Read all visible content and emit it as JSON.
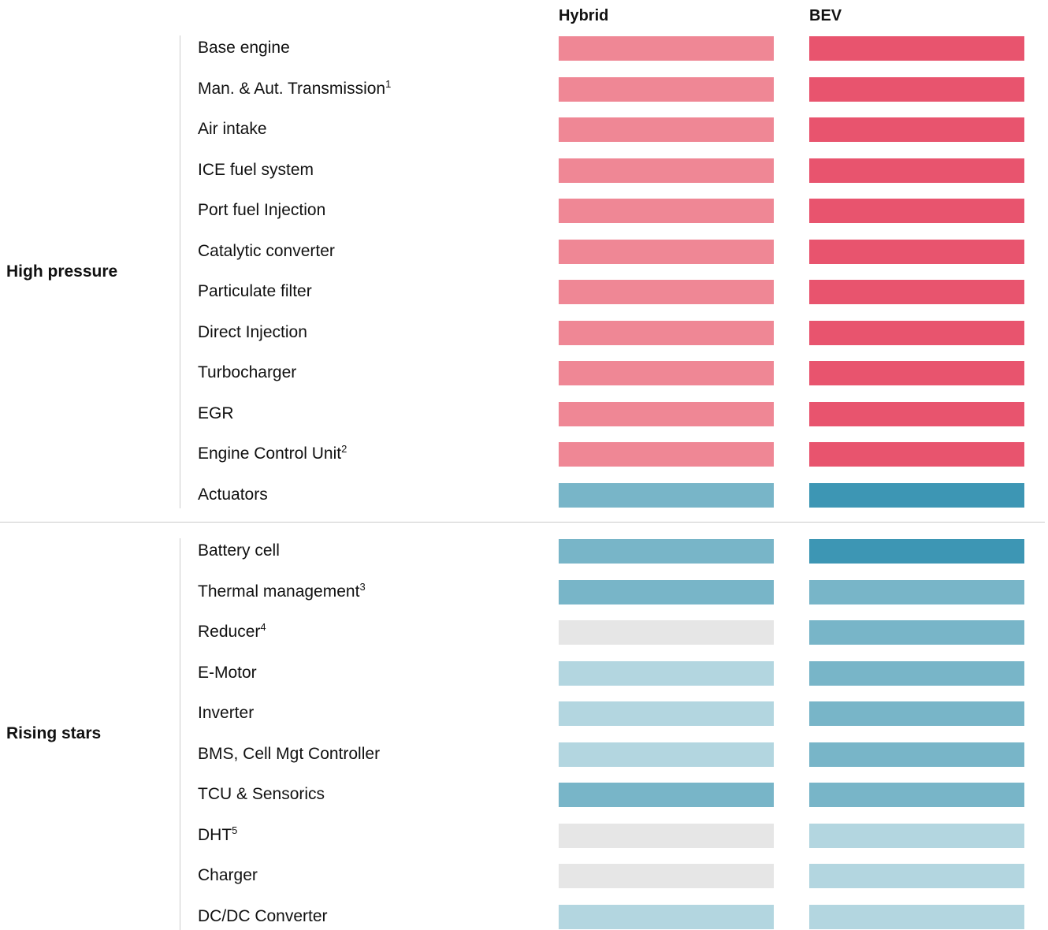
{
  "columns": [
    "Hybrid",
    "BEV"
  ],
  "groups": [
    {
      "name": "High pressure",
      "rows": [
        {
          "label": "Base engine",
          "hybrid": "#ef8795",
          "bev": "#e8546e"
        },
        {
          "label": "Man. & Aut. Transmission",
          "sup": "1",
          "hybrid": "#ef8795",
          "bev": "#e8546e"
        },
        {
          "label": "Air intake",
          "hybrid": "#ef8795",
          "bev": "#e8546e"
        },
        {
          "label": "ICE fuel system",
          "hybrid": "#ef8795",
          "bev": "#e8546e"
        },
        {
          "label": "Port fuel Injection",
          "hybrid": "#ef8795",
          "bev": "#e8546e"
        },
        {
          "label": "Catalytic converter",
          "hybrid": "#ef8795",
          "bev": "#e8546e"
        },
        {
          "label": "Particulate filter",
          "hybrid": "#ef8795",
          "bev": "#e8546e"
        },
        {
          "label": "Direct Injection",
          "hybrid": "#ef8795",
          "bev": "#e8546e"
        },
        {
          "label": "Turbocharger",
          "hybrid": "#ef8795",
          "bev": "#e8546e"
        },
        {
          "label": "EGR",
          "hybrid": "#ef8795",
          "bev": "#e8546e"
        },
        {
          "label": "Engine Control Unit",
          "sup": "2",
          "hybrid": "#ef8795",
          "bev": "#e8546e"
        },
        {
          "label": "Actuators",
          "hybrid": "#78b5c8",
          "bev": "#3d96b4"
        }
      ]
    },
    {
      "name": "Rising stars",
      "rows": [
        {
          "label": "Battery cell",
          "hybrid": "#78b5c8",
          "bev": "#3d96b4"
        },
        {
          "label": "Thermal management",
          "sup": "3",
          "hybrid": "#78b5c8",
          "bev": "#78b5c8"
        },
        {
          "label": "Reducer",
          "sup": "4",
          "hybrid": "#e6e6e6",
          "bev": "#78b5c8"
        },
        {
          "label": "E-Motor",
          "hybrid": "#b3d6e0",
          "bev": "#78b5c8"
        },
        {
          "label": "Inverter",
          "hybrid": "#b3d6e0",
          "bev": "#78b5c8"
        },
        {
          "label": "BMS, Cell Mgt Controller",
          "hybrid": "#b3d6e0",
          "bev": "#78b5c8"
        },
        {
          "label": "TCU & Sensorics",
          "hybrid": "#78b5c8",
          "bev": "#78b5c8"
        },
        {
          "label": "DHT",
          "sup": "5",
          "hybrid": "#e6e6e6",
          "bev": "#b3d6e0"
        },
        {
          "label": "Charger",
          "hybrid": "#e6e6e6",
          "bev": "#b3d6e0"
        },
        {
          "label": "DC/DC Converter",
          "hybrid": "#b3d6e0",
          "bev": "#b3d6e0"
        }
      ]
    }
  ]
}
